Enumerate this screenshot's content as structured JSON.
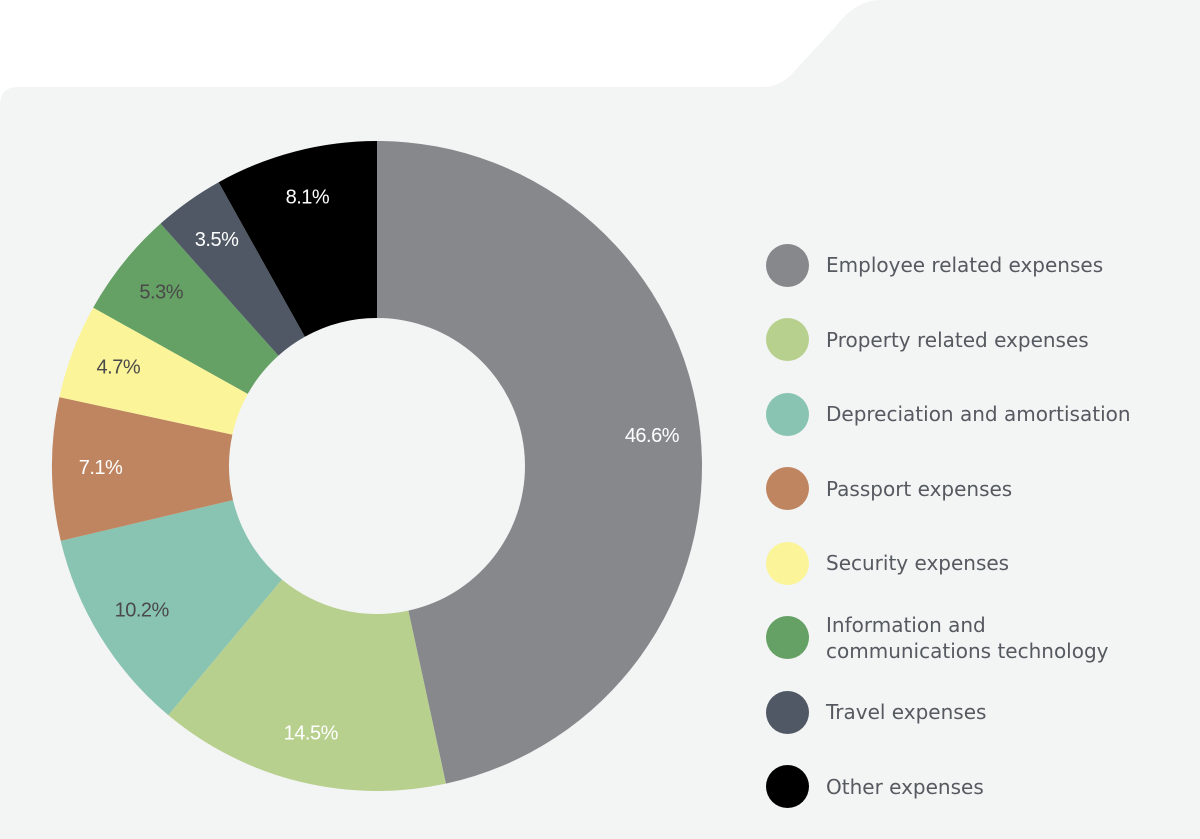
{
  "chart_data": {
    "type": "pie",
    "donut": true,
    "slices": [
      {
        "label": "Employee related expenses",
        "value": 46.6,
        "display": "46.6%",
        "color": "#87888c",
        "label_dark": false
      },
      {
        "label": "Property related expenses",
        "value": 14.5,
        "display": "14.5%",
        "color": "#b8d08e",
        "label_dark": false
      },
      {
        "label": "Depreciation and amortisation",
        "value": 10.2,
        "display": "10.2%",
        "color": "#88c4b1",
        "label_dark": true
      },
      {
        "label": "Passport expenses",
        "value": 7.1,
        "display": "7.1%",
        "color": "#bf8560",
        "label_dark": false
      },
      {
        "label": "Security expenses",
        "value": 4.7,
        "display": "4.7%",
        "color": "#fbf498",
        "label_dark": true
      },
      {
        "label": "Information and communications technology",
        "value": 5.3,
        "display": "5.3%",
        "color": "#65a064",
        "label_dark": true
      },
      {
        "label": "Travel expenses",
        "value": 3.5,
        "display": "3.5%",
        "color": "#4f5864",
        "label_dark": false
      },
      {
        "label": "Other expenses",
        "value": 8.1,
        "display": "8.1%",
        "color": "#000000",
        "label_dark": false
      }
    ],
    "legend_position": "right"
  },
  "legend": {
    "items": [
      {
        "text": "Employee related expenses",
        "color": "#87888c"
      },
      {
        "text": "Property related expenses",
        "color": "#b8d08e"
      },
      {
        "text": "Depreciation and amortisation",
        "color": "#88c4b1"
      },
      {
        "text": "Passport expenses",
        "color": "#bf8560"
      },
      {
        "text": "Security expenses",
        "color": "#fbf498"
      },
      {
        "text": "Information and\ncommunications technology",
        "color": "#65a064"
      },
      {
        "text": "Travel expenses",
        "color": "#4f5864"
      },
      {
        "text": "Other expenses",
        "color": "#000000"
      }
    ]
  },
  "theme": {
    "panel_color": "#f3f4f4",
    "background_color": "#ffffff"
  }
}
